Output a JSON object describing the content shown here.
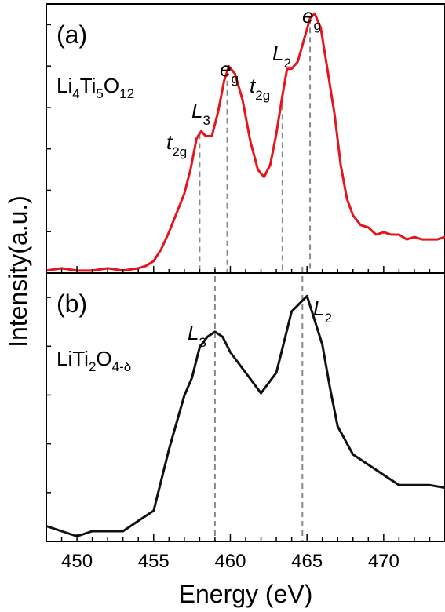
{
  "figure": {
    "ylabel": "Intensity(a.u.)",
    "xlabel": "Energy (eV)",
    "colors": {
      "panel_a_line": "#e8141b",
      "panel_b_line": "#111111",
      "marker_lines": "#8a8a8a",
      "axis": "#000000"
    }
  },
  "chart_data": [
    {
      "type": "line",
      "panel_label": "(a)",
      "sample": {
        "main": "Li",
        "s1": "4",
        "m1": "Ti",
        "s2": "5",
        "m2": "O",
        "s3": "12"
      },
      "xlim": [
        448,
        474
      ],
      "ylim": [
        0,
        1.12
      ],
      "grid": false,
      "x": [
        448,
        449,
        450,
        451,
        452,
        453,
        454,
        454.5,
        455,
        455.5,
        456,
        456.5,
        457,
        457.4,
        457.8,
        458.1,
        458.4,
        458.8,
        459.2,
        459.6,
        459.9,
        460.3,
        460.8,
        461.3,
        461.8,
        462.2,
        462.6,
        463.0,
        463.4,
        463.7,
        464.0,
        464.4,
        464.8,
        465.2,
        465.5,
        465.9,
        466.3,
        466.8,
        467.2,
        467.6,
        468,
        468.5,
        469,
        469.5,
        470,
        470.5,
        471,
        471.5,
        472,
        472.5,
        473,
        473.5,
        474
      ],
      "series": [
        {
          "values": [
            0.01,
            0.02,
            0.01,
            0.01,
            0.02,
            0.01,
            0.02,
            0.03,
            0.05,
            0.1,
            0.17,
            0.25,
            0.33,
            0.43,
            0.56,
            0.59,
            0.57,
            0.57,
            0.67,
            0.8,
            0.86,
            0.83,
            0.72,
            0.55,
            0.43,
            0.4,
            0.45,
            0.58,
            0.74,
            0.85,
            0.85,
            0.88,
            0.97,
            1.06,
            1.08,
            1.02,
            0.86,
            0.66,
            0.45,
            0.31,
            0.24,
            0.2,
            0.19,
            0.16,
            0.17,
            0.16,
            0.16,
            0.14,
            0.15,
            0.14,
            0.14,
            0.14,
            0.15
          ]
        }
      ],
      "peak_markers": [
        458.0,
        459.8,
        463.4,
        465.2
      ],
      "annotations": [
        {
          "italic": "t",
          "sub": "2g"
        },
        {
          "italic": "L",
          "sub": "3"
        },
        {
          "italic": "e",
          "sub": "g"
        },
        {
          "italic": "t",
          "sub": "2g"
        },
        {
          "italic": "L",
          "sub": "2"
        },
        {
          "italic": "e",
          "sub": "g"
        }
      ]
    },
    {
      "type": "line",
      "panel_label": "(b)",
      "sample": {
        "main": "LiTi",
        "s1": "2",
        "m1": "O",
        "s2": "4-δ"
      },
      "xlim": [
        448,
        474
      ],
      "ylim": [
        0,
        1.05
      ],
      "grid": false,
      "x": [
        448,
        449,
        450,
        451,
        452,
        453,
        454,
        455,
        456,
        457,
        457.5,
        458,
        458.5,
        459,
        459.5,
        460,
        461,
        462,
        463,
        464,
        465,
        466,
        466.5,
        467,
        468,
        469,
        470,
        471,
        472,
        473,
        474
      ],
      "series": [
        {
          "values": [
            0.06,
            0.04,
            0.02,
            0.04,
            0.04,
            0.04,
            0.08,
            0.12,
            0.36,
            0.57,
            0.64,
            0.76,
            0.8,
            0.82,
            0.8,
            0.74,
            0.66,
            0.58,
            0.66,
            0.9,
            0.96,
            0.77,
            0.6,
            0.45,
            0.34,
            0.3,
            0.26,
            0.22,
            0.22,
            0.22,
            0.21
          ]
        }
      ],
      "peak_markers": [
        459.0,
        464.7
      ],
      "annotations": [
        {
          "italic": "L",
          "sub": "3"
        },
        {
          "italic": "L",
          "sub": "2"
        }
      ]
    }
  ],
  "xticks": [
    450,
    455,
    460,
    465,
    470
  ]
}
